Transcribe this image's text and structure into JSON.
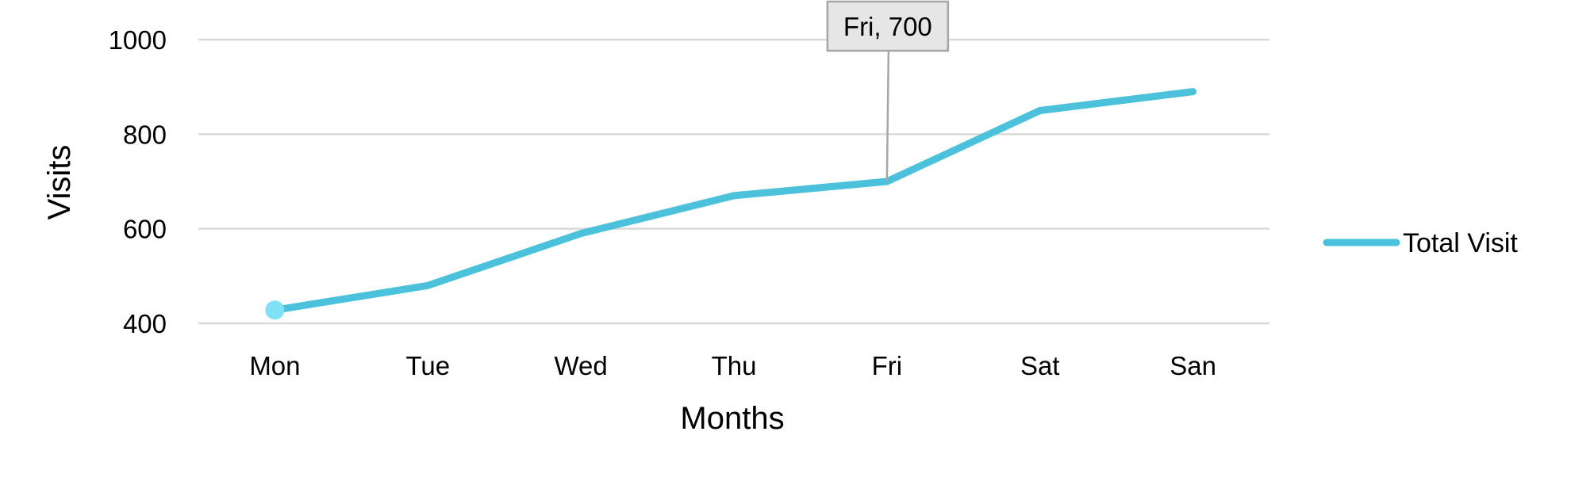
{
  "chart_data": {
    "type": "line",
    "categories": [
      "Mon",
      "Tue",
      "Wed",
      "Thu",
      "Fri",
      "Sat",
      "San"
    ],
    "series": [
      {
        "name": "Total Visit",
        "values": [
          428,
          480,
          590,
          670,
          700,
          850,
          890
        ],
        "color": "#4BC1DC"
      }
    ],
    "xlabel": "Months",
    "ylabel": "Visits",
    "ylim": [
      400,
      1000
    ],
    "yticks": [
      400,
      600,
      800,
      1000
    ],
    "grid": true,
    "legend_position": "right",
    "highlight_marker": {
      "category": "Mon",
      "color": "#7FE0F6"
    },
    "annotation": {
      "category": "Fri",
      "value": 700,
      "text": "Fri, 700"
    }
  }
}
